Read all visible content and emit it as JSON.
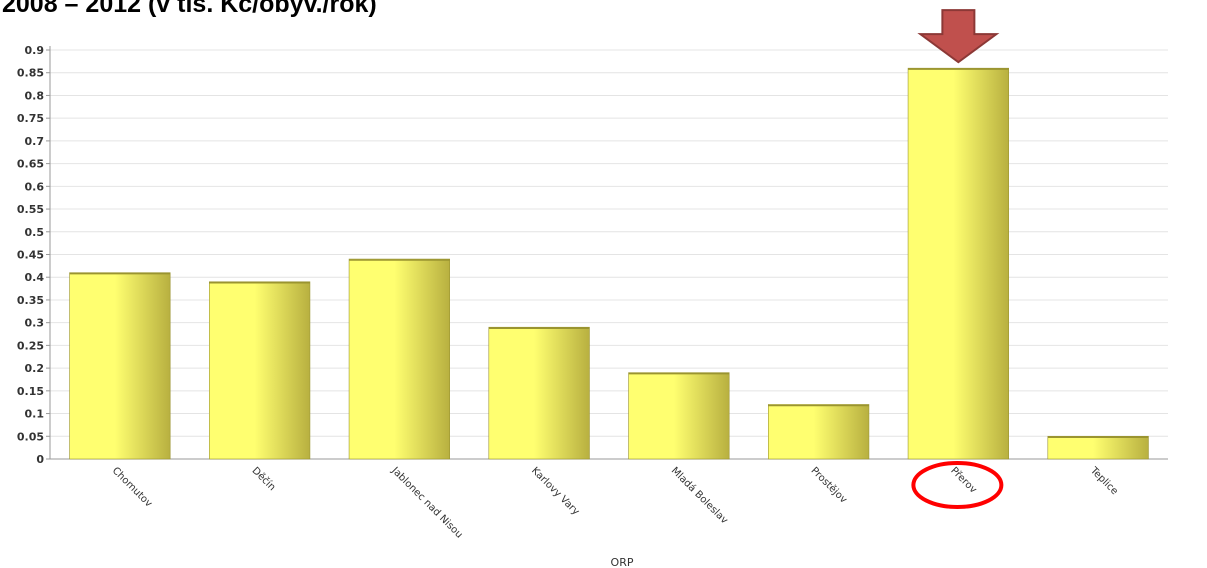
{
  "page": {
    "title": "2008 – 2012 (v tis. Kč/obyv./rok)"
  },
  "chart_data": {
    "type": "bar",
    "title": "2008 – 2012 (v tis. Kč/obyv./rok)",
    "xlabel": "ORP",
    "ylabel": "",
    "ylim": [
      0,
      0.9
    ],
    "yticks": [
      "0",
      "0.05",
      "0.1",
      "0.15",
      "0.2",
      "0.25",
      "0.3",
      "0.35",
      "0.4",
      "0.45",
      "0.5",
      "0.55",
      "0.6",
      "0.65",
      "0.7",
      "0.75",
      "0.8",
      "0.85",
      "0.9"
    ],
    "grid": true,
    "categories": [
      "Chomutov",
      "Děčín",
      "Jablonec nad Nisou",
      "Karlovy Vary",
      "Mladá Boleslav",
      "Prostějov",
      "Přerov",
      "Teplice"
    ],
    "values": [
      0.41,
      0.39,
      0.44,
      0.29,
      0.19,
      0.12,
      0.86,
      0.05
    ],
    "highlight": "Přerov",
    "colors": {
      "bar_light": "#ffff70",
      "bar_dark": "#b8b040",
      "bar_edge": "#9a9430",
      "grid": "#e4e4e4",
      "axis": "#999999",
      "arrow": "#c0504d",
      "arrow_edge": "#8c3836",
      "circle": "#ff0000"
    },
    "annotations": [
      "arrow-down",
      "circle"
    ]
  }
}
